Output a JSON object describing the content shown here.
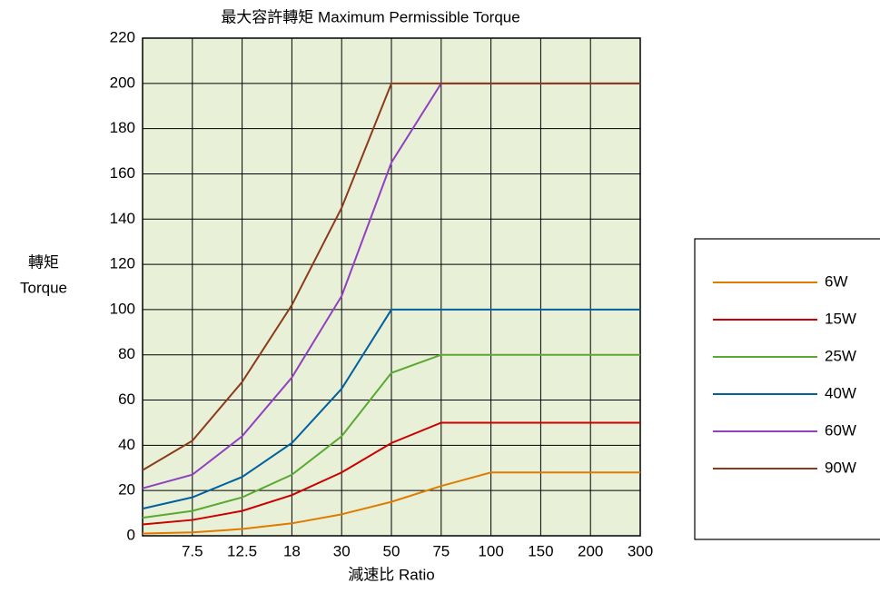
{
  "chart_data": {
    "type": "line",
    "title": "最大容許轉矩 Maximum Permissible Torque",
    "xlabel": "減速比 Ratio",
    "ylabel": [
      "轉矩",
      "Torque"
    ],
    "categories": [
      null,
      "7.5",
      "12.5",
      "18",
      "30",
      "50",
      "75",
      "100",
      "150",
      "200",
      "300"
    ],
    "series": [
      {
        "name": "6W",
        "color": "#e07b00",
        "values": [
          1,
          1.5,
          3,
          5.5,
          9.5,
          15,
          22,
          28,
          28,
          28,
          28
        ]
      },
      {
        "name": "15W",
        "color": "#cc0000",
        "values": [
          5,
          7,
          11,
          18,
          28,
          41,
          50,
          50,
          50,
          50,
          50
        ]
      },
      {
        "name": "25W",
        "color": "#5aaa32",
        "values": [
          8,
          11,
          17,
          27,
          44,
          72,
          80,
          80,
          80,
          80,
          80
        ]
      },
      {
        "name": "40W",
        "color": "#0060a0",
        "values": [
          12,
          17,
          26,
          41,
          65,
          100,
          100,
          100,
          100,
          100,
          100
        ]
      },
      {
        "name": "60W",
        "color": "#9040c0",
        "values": [
          21,
          27,
          44,
          70,
          106,
          165,
          200,
          200,
          200,
          200,
          200
        ]
      },
      {
        "name": "90W",
        "color": "#8b3a1a",
        "values": [
          29,
          42,
          68,
          102,
          145,
          200,
          200,
          200,
          200,
          200,
          200
        ]
      }
    ],
    "ylim": [
      0,
      220
    ],
    "yticks": [
      0,
      20,
      40,
      60,
      80,
      100,
      120,
      140,
      160,
      180,
      200,
      220
    ],
    "grid": true,
    "legend": "right"
  }
}
